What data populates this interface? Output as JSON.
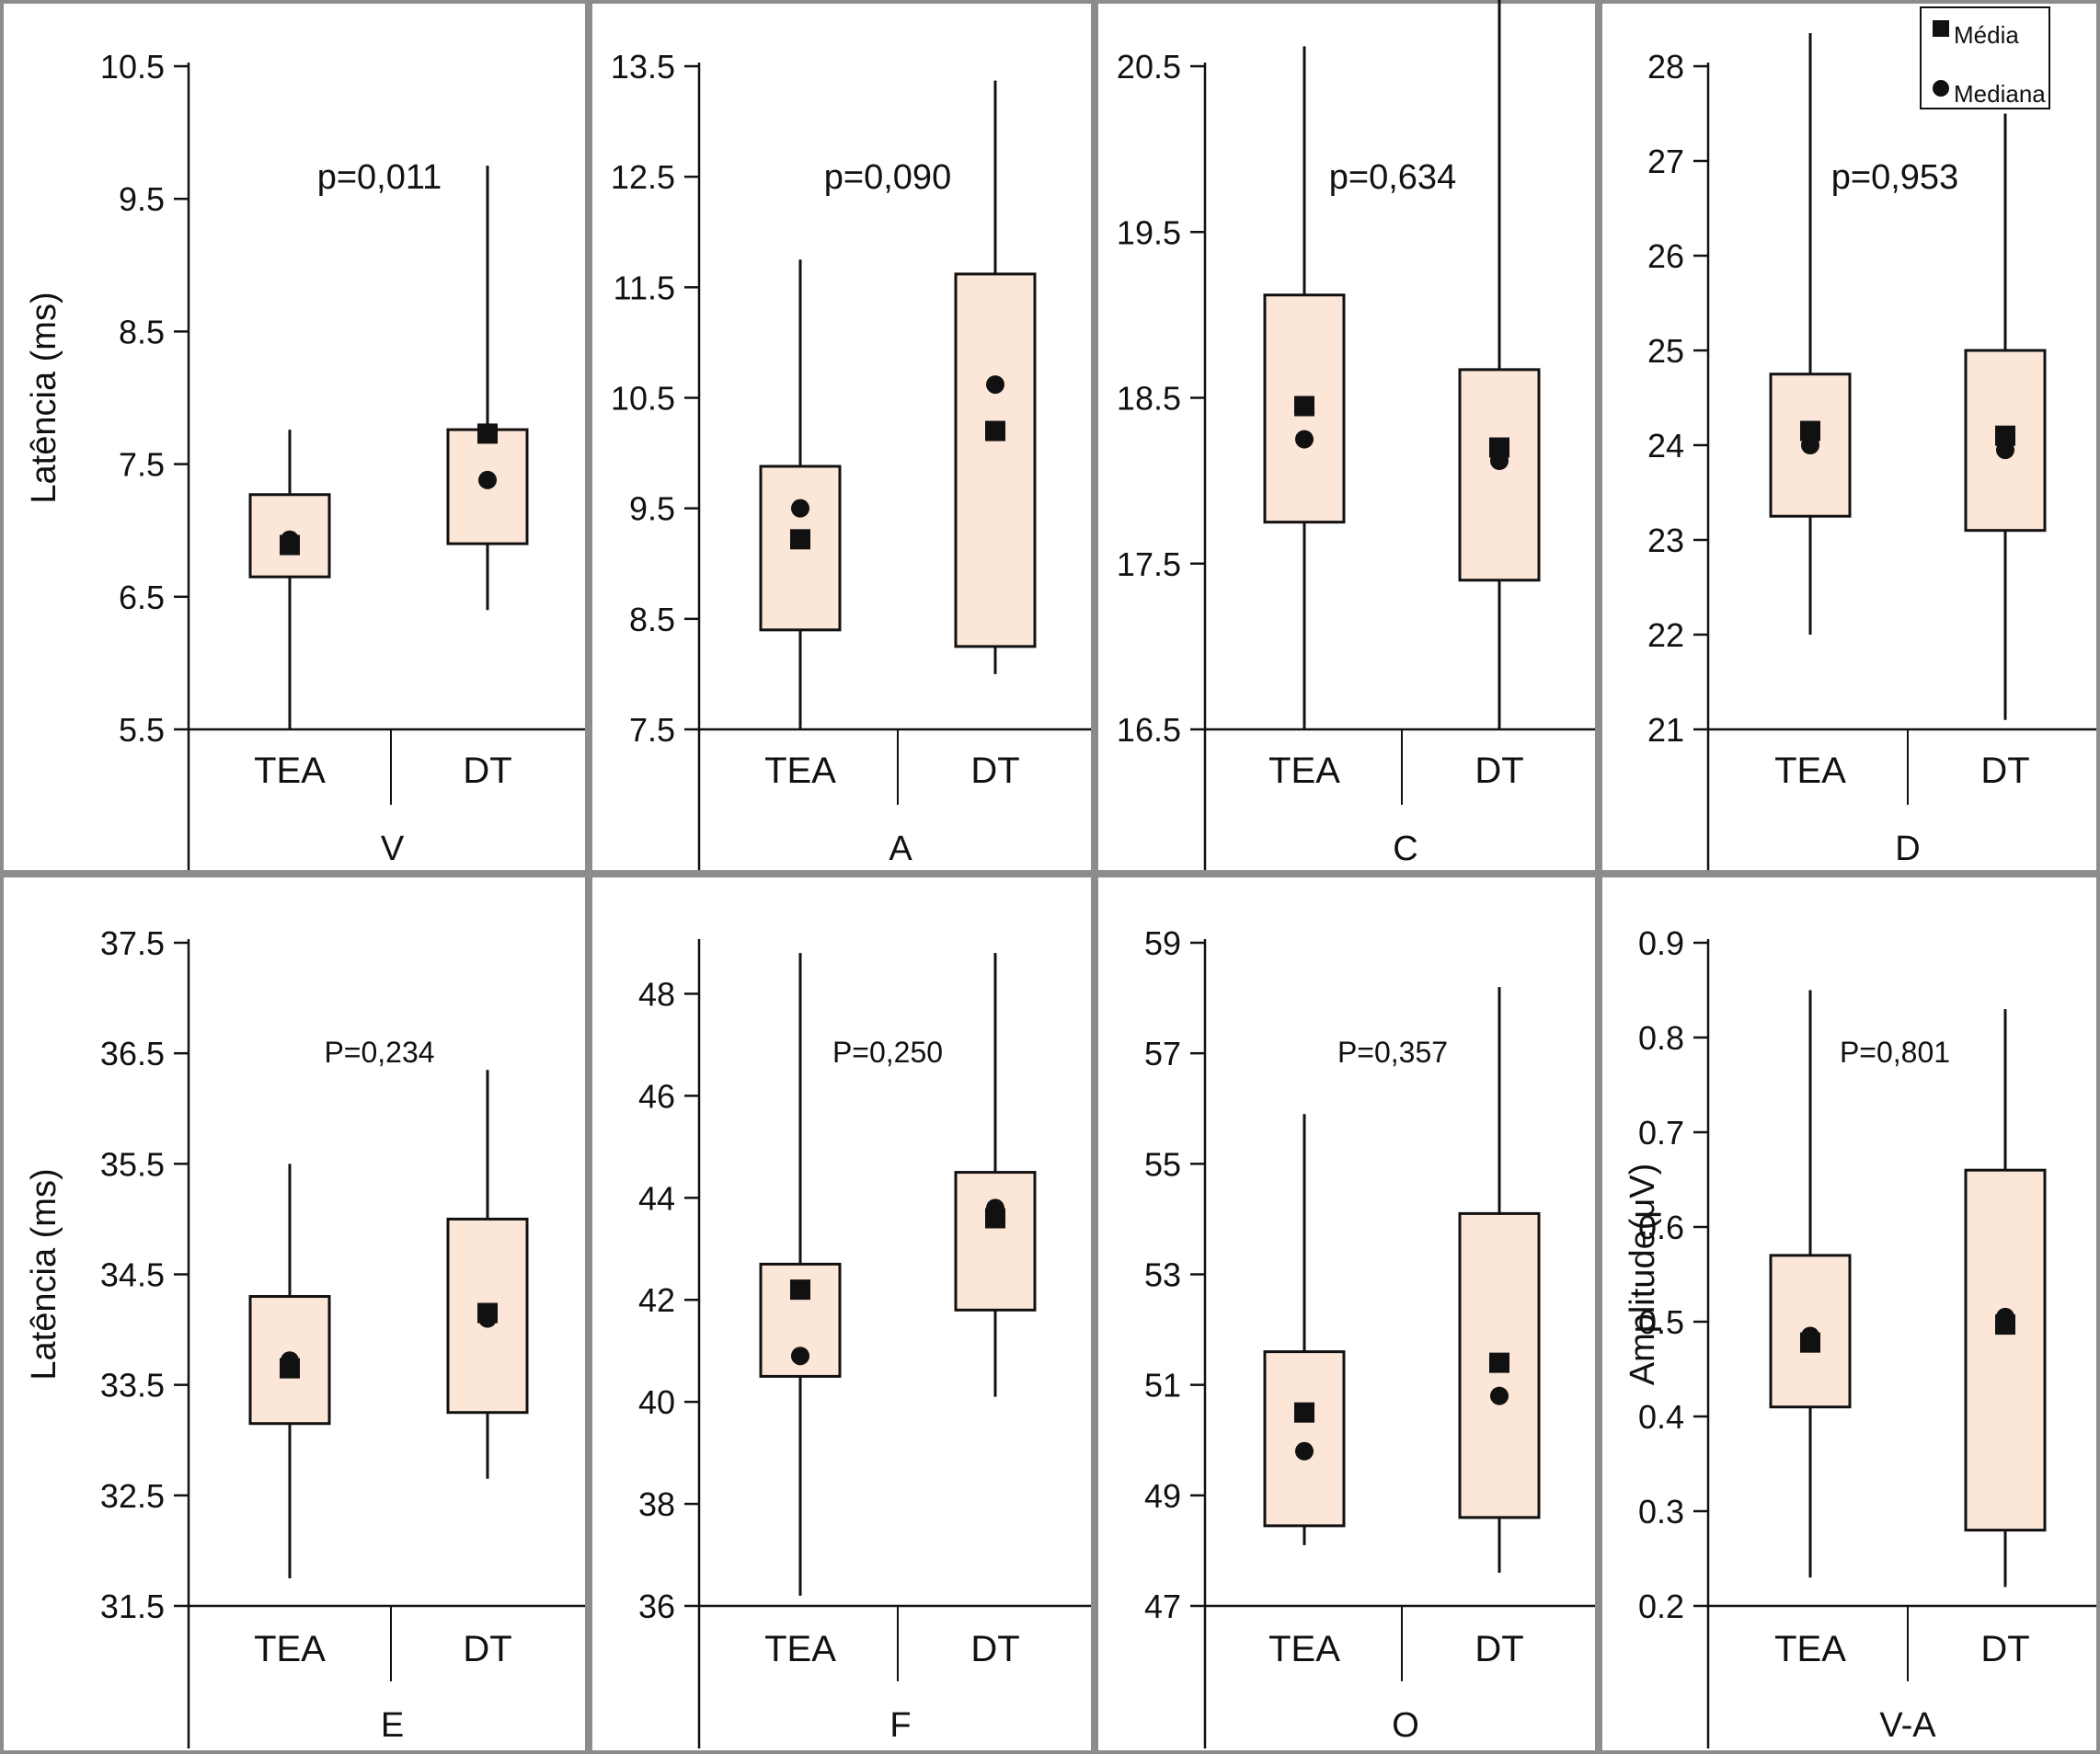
{
  "legend": {
    "placement": "top-right",
    "mean_label": "Média",
    "median_label": "Mediana"
  },
  "style": {
    "box_fill": "#fbe6d8",
    "ink": "#111111",
    "panel_border": "#8c8c8c"
  },
  "chart_data": [
    {
      "type": "box",
      "panel_label": "V",
      "ylabel": "Latência (ms)",
      "ylim": [
        5.5,
        10.5
      ],
      "yticks": [
        "5.5",
        "6.5",
        "7.5",
        "8.5",
        "9.5",
        "10.5"
      ],
      "annotation": "p=0,011",
      "categories": [
        "TEA",
        "DT"
      ],
      "boxes": [
        {
          "min": 5.5,
          "q1": 6.65,
          "median": 6.93,
          "q3": 7.27,
          "max": 7.76,
          "mean": 6.89
        },
        {
          "min": 6.4,
          "q1": 6.9,
          "median": 7.38,
          "q3": 7.76,
          "max": 9.75,
          "mean": 7.73
        }
      ]
    },
    {
      "type": "box",
      "panel_label": "A",
      "ylabel": "",
      "ylim": [
        7.5,
        13.5
      ],
      "yticks": [
        "7.5",
        "8.5",
        "9.5",
        "10.5",
        "11.5",
        "12.5",
        "13.5"
      ],
      "annotation": "p=0,090",
      "categories": [
        "TEA",
        "DT"
      ],
      "boxes": [
        {
          "min": 7.5,
          "q1": 8.4,
          "median": 9.5,
          "q3": 9.88,
          "max": 11.75,
          "mean": 9.22
        },
        {
          "min": 8.0,
          "q1": 8.25,
          "median": 10.62,
          "q3": 11.62,
          "max": 13.37,
          "mean": 10.2
        }
      ]
    },
    {
      "type": "box",
      "panel_label": "C",
      "ylabel": "",
      "ylim": [
        16.5,
        20.5
      ],
      "yticks": [
        "16.5",
        "17.5",
        "18.5",
        "19.5",
        "20.5"
      ],
      "annotation": "p=0,634",
      "categories": [
        "TEA",
        "DT"
      ],
      "boxes": [
        {
          "min": 16.5,
          "q1": 17.75,
          "median": 18.25,
          "q3": 19.12,
          "max": 20.62,
          "mean": 18.45
        },
        {
          "min": 16.5,
          "q1": 17.4,
          "median": 18.12,
          "q3": 18.67,
          "max": 20.9,
          "mean": 18.2
        }
      ]
    },
    {
      "type": "box",
      "panel_label": "D",
      "ylabel": "",
      "ylim": [
        21,
        28
      ],
      "yticks": [
        "21",
        "22",
        "23",
        "24",
        "25",
        "26",
        "27",
        "28"
      ],
      "annotation": "p=0,953",
      "categories": [
        "TEA",
        "DT"
      ],
      "boxes": [
        {
          "min": 22.0,
          "q1": 23.25,
          "median": 24.0,
          "q3": 24.75,
          "max": 28.35,
          "mean": 24.15
        },
        {
          "min": 21.1,
          "q1": 23.1,
          "median": 23.95,
          "q3": 25.0,
          "max": 27.5,
          "mean": 24.1
        }
      ]
    },
    {
      "type": "box",
      "panel_label": "E",
      "ylabel": "Latência (ms)",
      "ylim": [
        31.5,
        37.5
      ],
      "yticks": [
        "31.5",
        "32.5",
        "33.5",
        "34.5",
        "35.5",
        "36.5",
        "37.5"
      ],
      "annotation": "P=0,234",
      "categories": [
        "TEA",
        "DT"
      ],
      "boxes": [
        {
          "min": 31.75,
          "q1": 33.15,
          "median": 33.72,
          "q3": 34.3,
          "max": 35.5,
          "mean": 33.65
        },
        {
          "min": 32.65,
          "q1": 33.25,
          "median": 34.1,
          "q3": 35.0,
          "max": 36.35,
          "mean": 34.15
        }
      ]
    },
    {
      "type": "box",
      "panel_label": "F",
      "ylabel": "",
      "ylim": [
        36,
        49
      ],
      "yticks": [
        "36",
        "38",
        "40",
        "42",
        "44",
        "46",
        "48"
      ],
      "annotation": "P=0,250",
      "categories": [
        "TEA",
        "DT"
      ],
      "boxes": [
        {
          "min": 36.2,
          "q1": 40.5,
          "median": 40.9,
          "q3": 42.7,
          "max": 48.8,
          "mean": 42.2
        },
        {
          "min": 40.1,
          "q1": 41.8,
          "median": 43.8,
          "q3": 44.5,
          "max": 48.8,
          "mean": 43.6
        }
      ]
    },
    {
      "type": "box",
      "panel_label": "O",
      "ylabel": "",
      "ylim": [
        47,
        59
      ],
      "yticks": [
        "47",
        "49",
        "51",
        "53",
        "55",
        "57",
        "59"
      ],
      "annotation": "P=0,357",
      "categories": [
        "TEA",
        "DT"
      ],
      "boxes": [
        {
          "min": 48.1,
          "q1": 48.45,
          "median": 49.8,
          "q3": 51.6,
          "max": 55.9,
          "mean": 50.5
        },
        {
          "min": 47.6,
          "q1": 48.6,
          "median": 50.8,
          "q3": 54.1,
          "max": 58.2,
          "mean": 51.4
        }
      ]
    },
    {
      "type": "box",
      "panel_label": "V-A",
      "ylabel": "Amplitude(μV)",
      "ylim": [
        0.2,
        0.9
      ],
      "yticks": [
        "0.2",
        "0.3",
        "0.4",
        "0.5",
        "0.6",
        "0.7",
        "0.8",
        "0.9"
      ],
      "annotation": "P=0,801",
      "categories": [
        "TEA",
        "DT"
      ],
      "boxes": [
        {
          "min": 0.23,
          "q1": 0.41,
          "median": 0.485,
          "q3": 0.57,
          "max": 0.85,
          "mean": 0.478
        },
        {
          "min": 0.22,
          "q1": 0.28,
          "median": 0.505,
          "q3": 0.66,
          "max": 0.83,
          "mean": 0.497
        }
      ]
    }
  ]
}
